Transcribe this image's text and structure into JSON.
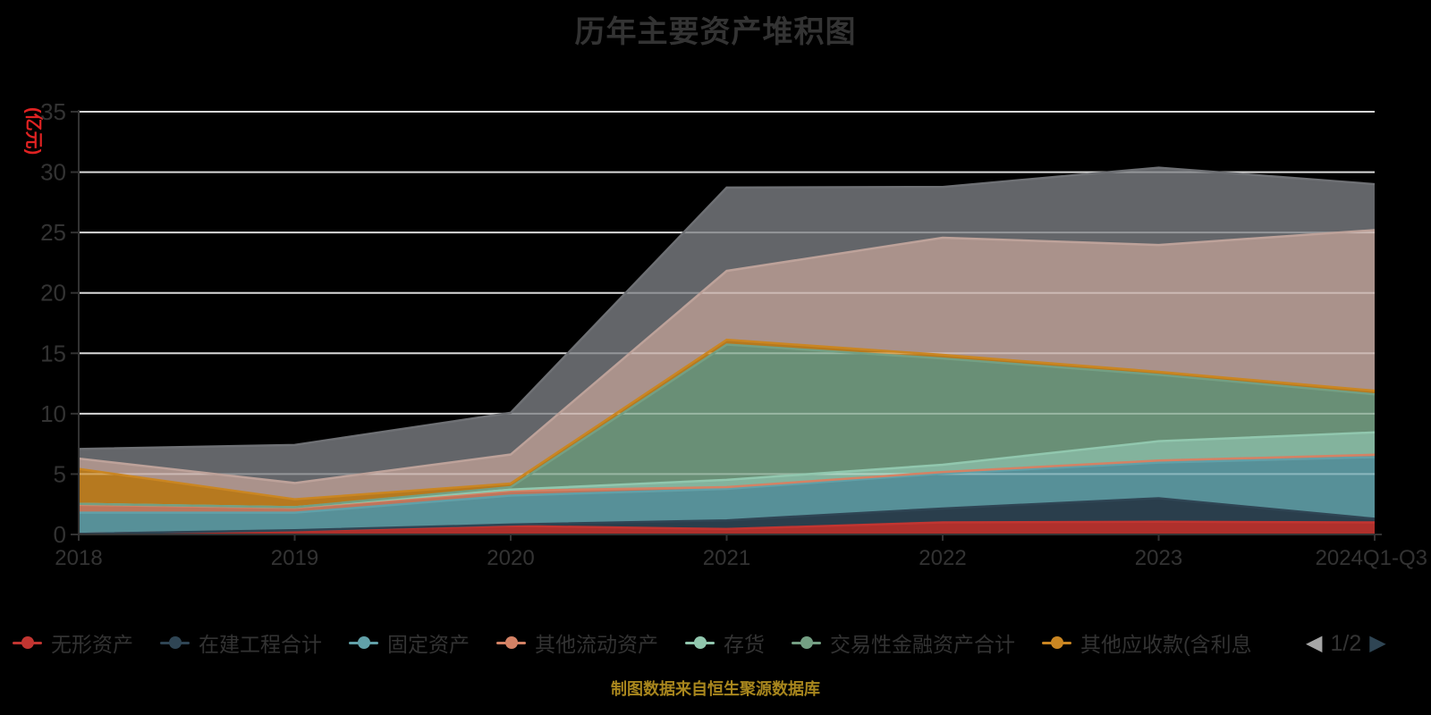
{
  "page": {
    "background": "#000000"
  },
  "chart": {
    "title": "历年主要资产堆积图",
    "y_axis_name": "(亿元)",
    "source_note": "制图数据来自恒生聚源数据库",
    "legend": {
      "page_text": "1/2",
      "prev_icon": "◀",
      "next_icon": "▶"
    },
    "colors": {
      "title": "#333333",
      "axis_label": "#333333",
      "axis_line": "#333333",
      "grid_line": "#cccccc",
      "y_name": "#e02222",
      "legend_label": "#333333",
      "pager_text": "#333333",
      "pager_prev": "#a6a6a6",
      "pager_next": "#2f4554",
      "source_note": "#a8861d"
    }
  },
  "chart_data": {
    "type": "area",
    "stacked": true,
    "title": "历年主要资产堆积图",
    "xlabel": "",
    "ylabel": "(亿元)",
    "categories": [
      "2018",
      "2019",
      "2020",
      "2021",
      "2022",
      "2023",
      "2024Q1-Q3"
    ],
    "ylim": [
      0,
      35
    ],
    "y_ticks": [
      0,
      5,
      10,
      15,
      20,
      25,
      30,
      35
    ],
    "grid": true,
    "legend_position": "bottom",
    "legend_page": "1/2",
    "series": [
      {
        "name": "无形资产",
        "color": "#c23531",
        "legend_visible": true,
        "values": [
          0.05,
          0.33,
          0.7,
          0.45,
          1.0,
          1.05,
          1.0
        ]
      },
      {
        "name": "在建工程合计",
        "color": "#2f4554",
        "legend_visible": true,
        "values": [
          0.0,
          0.02,
          0.12,
          0.72,
          1.15,
          1.95,
          0.3
        ]
      },
      {
        "name": "固定资产",
        "color": "#61a0a8",
        "legend_visible": true,
        "values": [
          1.75,
          1.45,
          2.4,
          2.6,
          2.9,
          2.95,
          5.1
        ]
      },
      {
        "name": "其他流动资产",
        "color": "#d48265",
        "legend_visible": true,
        "values": [
          0.65,
          0.4,
          0.4,
          0.15,
          0.12,
          0.17,
          0.2
        ]
      },
      {
        "name": "存货",
        "color": "#91c7ae",
        "legend_visible": true,
        "values": [
          0.08,
          0.06,
          0.1,
          0.6,
          0.6,
          1.6,
          1.85
        ]
      },
      {
        "name": "交易性金融资产合计",
        "color": "#749f83",
        "legend_visible": true,
        "values": [
          0.0,
          0.0,
          0.2,
          11.2,
          8.8,
          5.5,
          3.15
        ]
      },
      {
        "name": "其他应收款(含利息",
        "color": "#ca8622",
        "legend_visible": true,
        "values": [
          2.9,
          0.65,
          0.3,
          0.4,
          0.3,
          0.25,
          0.3
        ]
      },
      {
        "name": "",
        "color": "#bda29a",
        "legend_visible": false,
        "values": [
          0.85,
          1.35,
          2.4,
          5.7,
          9.7,
          10.5,
          13.3
        ]
      },
      {
        "name": "",
        "color": "#6e7074",
        "legend_visible": false,
        "values": [
          0.8,
          3.15,
          3.45,
          6.9,
          4.2,
          6.4,
          3.8
        ]
      }
    ]
  }
}
